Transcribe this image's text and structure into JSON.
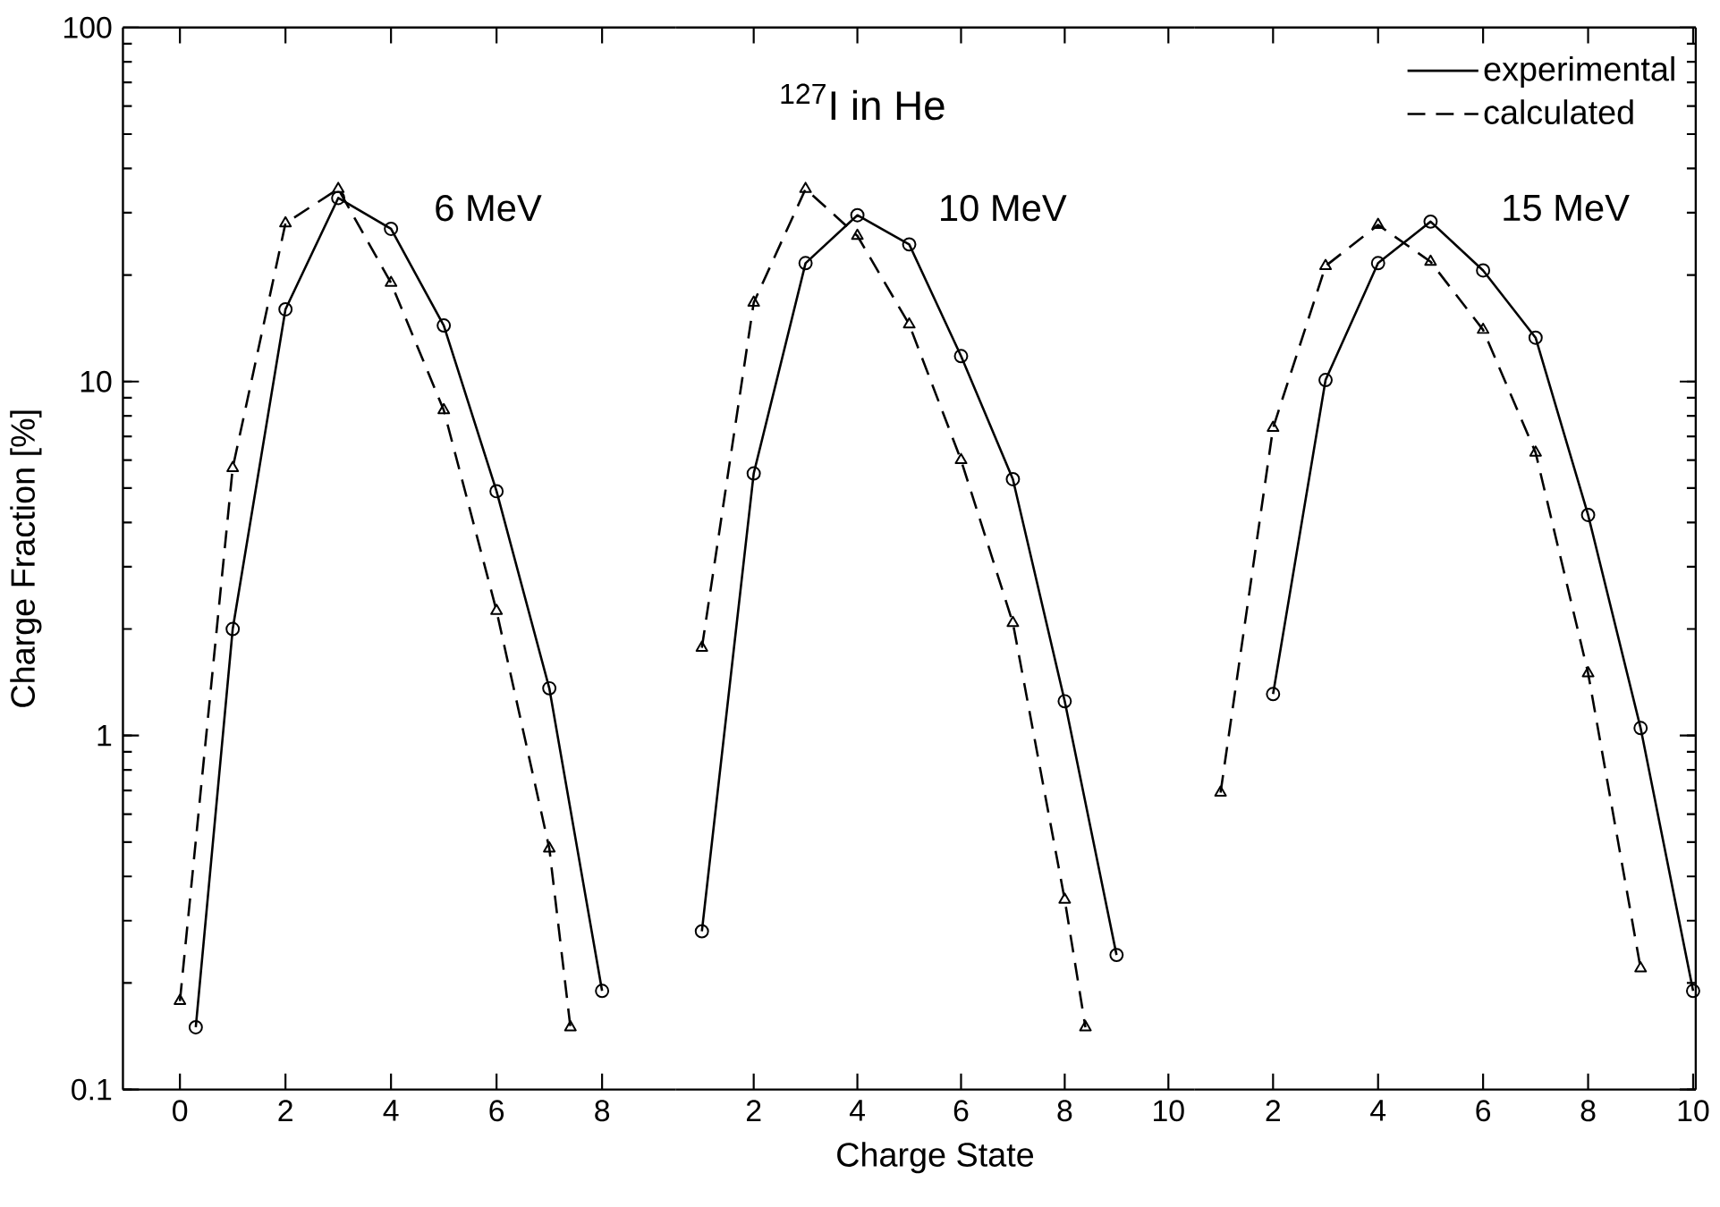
{
  "chart_data": [
    {
      "type": "line",
      "title": "6 MeV",
      "ylabel": "Charge Fraction [%]",
      "log": true,
      "ylim": [
        0.1,
        100
      ],
      "yticks": [
        0.1,
        1,
        10,
        100
      ],
      "xlim": [
        -1.08,
        9.4
      ],
      "xticks": [
        0,
        2,
        4,
        6,
        8
      ],
      "legend": false,
      "series": [
        {
          "color": "#000000",
          "line_style": "solid",
          "marker": "circle",
          "x": [
            0.3,
            1,
            2,
            3,
            4,
            5,
            6,
            7,
            8
          ],
          "values": [
            0.15,
            2,
            16,
            33,
            27,
            14.4,
            4.9,
            1.36,
            0.19
          ]
        },
        {
          "color": "#000000",
          "line_style": "dashed",
          "marker": "triangle",
          "x": [
            0,
            1,
            2,
            3,
            4,
            5,
            6,
            7,
            7.4
          ],
          "values": [
            0.178,
            5.7,
            28,
            35,
            19,
            8.3,
            2.25,
            0.48,
            0.15
          ]
        }
      ]
    },
    {
      "type": "line",
      "title": "10 MeV",
      "xlabel": "Charge State",
      "annotations": [
        "$^{127}$I in He"
      ],
      "log": true,
      "ylim": [
        0.1,
        100
      ],
      "xlim": [
        0.5,
        10.5
      ],
      "xticks": [
        2,
        4,
        6,
        8,
        10
      ],
      "tick_labels": "x",
      "legend": false,
      "series": [
        {
          "color": "#000000",
          "line_style": "solid",
          "marker": "circle",
          "x": [
            1,
            2,
            3,
            4,
            5,
            6,
            7,
            8,
            9
          ],
          "values": [
            0.28,
            5.5,
            21.6,
            29.5,
            24.4,
            11.8,
            5.3,
            1.25,
            0.24
          ]
        },
        {
          "color": "#000000",
          "line_style": "dashed",
          "marker": "triangle",
          "x": [
            1,
            2,
            3,
            4,
            5,
            6,
            7,
            8,
            8.4
          ],
          "values": [
            1.77,
            16.7,
            35,
            25.8,
            14.5,
            6,
            2.08,
            0.344,
            0.15
          ]
        }
      ]
    },
    {
      "type": "line",
      "title": "15 MeV",
      "log": true,
      "ylim": [
        0.1,
        100
      ],
      "yticks": [
        {
          "value": 0.1,
          "label": null
        },
        {
          "value": 1,
          "label": null
        },
        {
          "value": 10,
          "label": null
        },
        {
          "value": 100,
          "label": null
        }
      ],
      "xlim": [
        0.5,
        10.05
      ],
      "xticks": [
        2,
        4,
        6,
        8,
        10
      ],
      "tick_labels": "x",
      "legend": "top right",
      "series": [
        {
          "name": "experimental",
          "color": "#000000",
          "line_style": "solid",
          "marker": "circle",
          "x": [
            2,
            3,
            4,
            5,
            6,
            7,
            8,
            9,
            10
          ],
          "values": [
            1.31,
            10.1,
            21.6,
            28.3,
            20.6,
            13.3,
            4.2,
            1.05,
            0.19
          ]
        },
        {
          "name": "calculated",
          "color": "#000000",
          "line_style": "dashed",
          "marker": "triangle",
          "x": [
            1,
            2,
            3,
            4,
            5,
            6,
            7,
            8,
            9
          ],
          "values": [
            0.69,
            7.4,
            21.2,
            27.7,
            21.8,
            14,
            6.3,
            1.5,
            0.22
          ]
        }
      ]
    }
  ]
}
